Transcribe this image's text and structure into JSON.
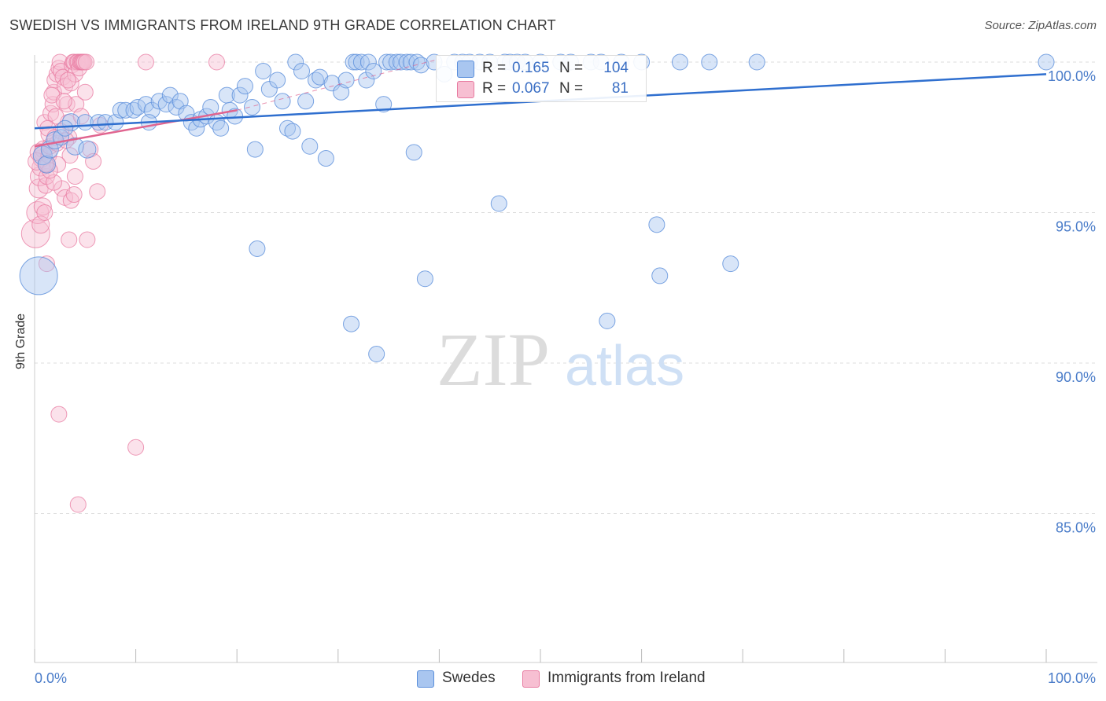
{
  "title": "SWEDISH VS IMMIGRANTS FROM IRELAND 9TH GRADE CORRELATION CHART",
  "source": "Source: ZipAtlas.com",
  "watermark": {
    "zip": "ZIP",
    "atlas": "atlas"
  },
  "colors": {
    "blue": "#5b8fdb",
    "blue_fill": "#a9c6f0",
    "blue_line": "#2f6fcf",
    "pink": "#e87aa0",
    "pink_fill": "#f7bfd2",
    "pink_line": "#e0648f",
    "axis_text": "#4a7cc9",
    "grid": "#dddddd"
  },
  "legend": {
    "rows": [
      {
        "r_label": "R =",
        "r_value": "0.165",
        "n_label": "N =",
        "n_value": "104"
      },
      {
        "r_label": "R =",
        "r_value": "0.067",
        "n_label": "N =",
        "n_value": "81"
      }
    ]
  },
  "bottom_legend": [
    "Swedes",
    "Immigrants from Ireland"
  ],
  "chart_data": {
    "type": "scatter",
    "title": "SWEDISH VS IMMIGRANTS FROM IRELAND 9TH GRADE CORRELATION CHART",
    "xlabel": "",
    "ylabel": "9th Grade",
    "xlim": [
      0,
      100
    ],
    "ylim": [
      80.5,
      101
    ],
    "x_tick_labels": [
      "0.0%",
      "100.0%"
    ],
    "y_ticks": [
      100,
      95,
      90,
      85
    ],
    "y_tick_labels": [
      "100.0%",
      "95.0%",
      "90.0%",
      "85.0%"
    ],
    "legend_position": "top-center",
    "series": [
      {
        "name": "Swedes",
        "R": 0.165,
        "N": 104,
        "trend": {
          "x": [
            0,
            100
          ],
          "y": [
            97.8,
            99.6
          ],
          "style": "solid"
        },
        "points": [
          [
            0.4,
            92.9
          ],
          [
            0.8,
            96.9
          ],
          [
            1.2,
            96.6
          ],
          [
            1.5,
            97.1
          ],
          [
            2.0,
            97.4
          ],
          [
            2.6,
            97.5
          ],
          [
            3.6,
            98.0
          ],
          [
            3.0,
            97.8
          ],
          [
            4.0,
            97.2
          ],
          [
            5.2,
            97.1
          ],
          [
            5.0,
            98.0
          ],
          [
            6.3,
            98.0
          ],
          [
            7.0,
            98.0
          ],
          [
            8.0,
            98.0
          ],
          [
            8.5,
            98.4
          ],
          [
            9.0,
            98.4
          ],
          [
            9.8,
            98.4
          ],
          [
            10.2,
            98.5
          ],
          [
            11.0,
            98.6
          ],
          [
            11.6,
            98.4
          ],
          [
            11.3,
            98.0
          ],
          [
            12.3,
            98.7
          ],
          [
            13.0,
            98.6
          ],
          [
            13.4,
            98.9
          ],
          [
            14.0,
            98.5
          ],
          [
            14.4,
            98.7
          ],
          [
            15.0,
            98.3
          ],
          [
            15.5,
            98.0
          ],
          [
            16.0,
            97.8
          ],
          [
            16.4,
            98.1
          ],
          [
            17.0,
            98.2
          ],
          [
            17.4,
            98.5
          ],
          [
            18.0,
            98.0
          ],
          [
            18.4,
            97.8
          ],
          [
            19.0,
            98.9
          ],
          [
            19.3,
            98.4
          ],
          [
            19.8,
            98.2
          ],
          [
            20.3,
            98.9
          ],
          [
            20.8,
            99.2
          ],
          [
            21.5,
            98.5
          ],
          [
            21.8,
            97.1
          ],
          [
            22.0,
            93.8
          ],
          [
            22.6,
            99.7
          ],
          [
            23.2,
            99.1
          ],
          [
            24.0,
            99.4
          ],
          [
            24.5,
            98.7
          ],
          [
            25.0,
            97.8
          ],
          [
            25.5,
            97.7
          ],
          [
            25.8,
            100.0
          ],
          [
            26.4,
            99.7
          ],
          [
            26.8,
            98.7
          ],
          [
            27.2,
            97.2
          ],
          [
            27.8,
            99.4
          ],
          [
            28.2,
            99.5
          ],
          [
            28.8,
            96.8
          ],
          [
            29.4,
            99.3
          ],
          [
            30.3,
            99.0
          ],
          [
            30.8,
            99.4
          ],
          [
            31.3,
            91.3
          ],
          [
            31.5,
            100.0
          ],
          [
            31.8,
            100.0
          ],
          [
            32.3,
            100.0
          ],
          [
            32.8,
            99.4
          ],
          [
            33.0,
            100.0
          ],
          [
            33.5,
            99.7
          ],
          [
            33.8,
            90.3
          ],
          [
            34.5,
            98.6
          ],
          [
            34.8,
            100.0
          ],
          [
            35.2,
            100.0
          ],
          [
            35.8,
            100.0
          ],
          [
            36.2,
            100.0
          ],
          [
            36.8,
            100.0
          ],
          [
            37.2,
            100.0
          ],
          [
            37.5,
            97.0
          ],
          [
            37.8,
            100.0
          ],
          [
            38.2,
            99.9
          ],
          [
            38.6,
            92.8
          ],
          [
            39.5,
            100.0
          ],
          [
            40.5,
            99.6
          ],
          [
            41.5,
            100.0
          ],
          [
            42.3,
            100.0
          ],
          [
            43.0,
            100.0
          ],
          [
            44.0,
            100.0
          ],
          [
            45.0,
            100.0
          ],
          [
            45.9,
            95.3
          ],
          [
            46.5,
            100.0
          ],
          [
            47.0,
            100.0
          ],
          [
            47.7,
            100.0
          ],
          [
            48.5,
            100.0
          ],
          [
            50.0,
            100.0
          ],
          [
            52.0,
            100.0
          ],
          [
            53.0,
            100.0
          ],
          [
            55.0,
            100.0
          ],
          [
            56.0,
            100.0
          ],
          [
            56.6,
            91.4
          ],
          [
            58.0,
            100.0
          ],
          [
            60.0,
            100.0
          ],
          [
            61.5,
            94.6
          ],
          [
            61.8,
            92.9
          ],
          [
            63.8,
            100.0
          ],
          [
            66.7,
            100.0
          ],
          [
            68.8,
            93.3
          ],
          [
            71.4,
            100.0
          ],
          [
            100.0,
            100.0
          ]
        ],
        "point_sizes": [
          24,
          12,
          11,
          11,
          11,
          10,
          11,
          10,
          11,
          11,
          10,
          10,
          10,
          10,
          10,
          10,
          10,
          10,
          10,
          10,
          10,
          10,
          10,
          10,
          10,
          10,
          10,
          10,
          10,
          10,
          10,
          10,
          10,
          10,
          10,
          10,
          10,
          10,
          10,
          10,
          10,
          10,
          10,
          10,
          10,
          10,
          10,
          10,
          10,
          10,
          10,
          10,
          10,
          10,
          10,
          10,
          10,
          10,
          10,
          10,
          10,
          10,
          10,
          10,
          10,
          10,
          10,
          10,
          10,
          10,
          10,
          10,
          10,
          10,
          10,
          10,
          10,
          10,
          10,
          10,
          10,
          10,
          10,
          10,
          10,
          10,
          10,
          10,
          10,
          10,
          10,
          10,
          10,
          10,
          10,
          10,
          10,
          10,
          10,
          10,
          10,
          10,
          10,
          10
        ]
      },
      {
        "name": "Immigrants from Ireland",
        "R": 0.067,
        "N": 81,
        "trend": {
          "x": [
            0,
            20
          ],
          "y": [
            97.2,
            98.4
          ],
          "style": "solid",
          "extension": {
            "x": [
              20,
              40
            ],
            "y": [
              98.4,
              100.1
            ],
            "style": "dashed"
          }
        },
        "points": [
          [
            0.1,
            94.3
          ],
          [
            0.3,
            95.0
          ],
          [
            0.4,
            95.8
          ],
          [
            0.5,
            96.2
          ],
          [
            0.6,
            96.5
          ],
          [
            0.7,
            96.8
          ],
          [
            0.8,
            97.0
          ],
          [
            0.9,
            97.1
          ],
          [
            0.2,
            96.7
          ],
          [
            0.4,
            97.0
          ],
          [
            0.6,
            94.6
          ],
          [
            0.8,
            95.2
          ],
          [
            1.0,
            95.0
          ],
          [
            1.1,
            95.9
          ],
          [
            1.2,
            96.2
          ],
          [
            1.3,
            96.6
          ],
          [
            1.4,
            96.9
          ],
          [
            1.5,
            97.2
          ],
          [
            1.2,
            93.3
          ],
          [
            1.0,
            98.0
          ],
          [
            1.4,
            97.6
          ],
          [
            1.6,
            98.3
          ],
          [
            1.8,
            98.6
          ],
          [
            1.9,
            99.0
          ],
          [
            2.0,
            99.4
          ],
          [
            2.2,
            99.6
          ],
          [
            2.4,
            99.8
          ],
          [
            2.5,
            100.0
          ],
          [
            2.6,
            99.7
          ],
          [
            2.8,
            99.5
          ],
          [
            3.0,
            99.2
          ],
          [
            3.2,
            98.6
          ],
          [
            3.3,
            98.0
          ],
          [
            3.4,
            97.5
          ],
          [
            3.6,
            99.3
          ],
          [
            3.7,
            99.9
          ],
          [
            3.8,
            100.0
          ],
          [
            3.9,
            100.0
          ],
          [
            4.0,
            99.6
          ],
          [
            4.1,
            98.6
          ],
          [
            4.2,
            100.0
          ],
          [
            4.3,
            100.0
          ],
          [
            4.4,
            99.8
          ],
          [
            4.5,
            100.0
          ],
          [
            4.6,
            100.0
          ],
          [
            4.7,
            100.0
          ],
          [
            4.8,
            100.0
          ],
          [
            4.9,
            100.0
          ],
          [
            5.0,
            99.0
          ],
          [
            5.1,
            100.0
          ],
          [
            2.2,
            97.3
          ],
          [
            2.6,
            97.7
          ],
          [
            3.1,
            97.4
          ],
          [
            3.5,
            96.9
          ],
          [
            1.7,
            98.9
          ],
          [
            2.1,
            98.2
          ],
          [
            2.3,
            96.6
          ],
          [
            2.7,
            95.8
          ],
          [
            3.0,
            95.5
          ],
          [
            3.6,
            95.4
          ],
          [
            3.9,
            95.6
          ],
          [
            1.9,
            96.0
          ],
          [
            1.5,
            96.4
          ],
          [
            5.5,
            97.1
          ],
          [
            5.8,
            96.7
          ],
          [
            6.2,
            95.7
          ],
          [
            3.4,
            94.1
          ],
          [
            5.2,
            94.1
          ],
          [
            2.4,
            88.3
          ],
          [
            10.0,
            87.2
          ],
          [
            4.3,
            85.3
          ],
          [
            11.0,
            100.0
          ],
          [
            18.0,
            100.0
          ],
          [
            1.3,
            97.8
          ],
          [
            2.0,
            97.5
          ],
          [
            2.9,
            98.7
          ],
          [
            3.3,
            99.4
          ],
          [
            4.0,
            96.2
          ],
          [
            4.6,
            98.2
          ],
          [
            6.5,
            97.9
          ],
          [
            1.1,
            96.6
          ]
        ],
        "point_sizes": [
          18,
          14,
          12,
          12,
          11,
          11,
          11,
          11,
          11,
          11,
          11,
          11,
          10,
          10,
          10,
          10,
          10,
          10,
          10,
          10,
          10,
          10,
          10,
          10,
          10,
          10,
          10,
          10,
          10,
          10,
          10,
          10,
          10,
          10,
          10,
          10,
          10,
          10,
          10,
          10,
          10,
          10,
          10,
          10,
          10,
          10,
          10,
          10,
          10,
          10,
          10,
          10,
          10,
          10,
          10,
          10,
          10,
          10,
          10,
          10,
          10,
          10,
          10,
          10,
          10,
          10,
          10,
          10,
          10,
          10,
          10,
          10,
          10,
          10,
          10,
          10,
          10,
          10,
          10,
          10,
          10
        ]
      }
    ]
  }
}
